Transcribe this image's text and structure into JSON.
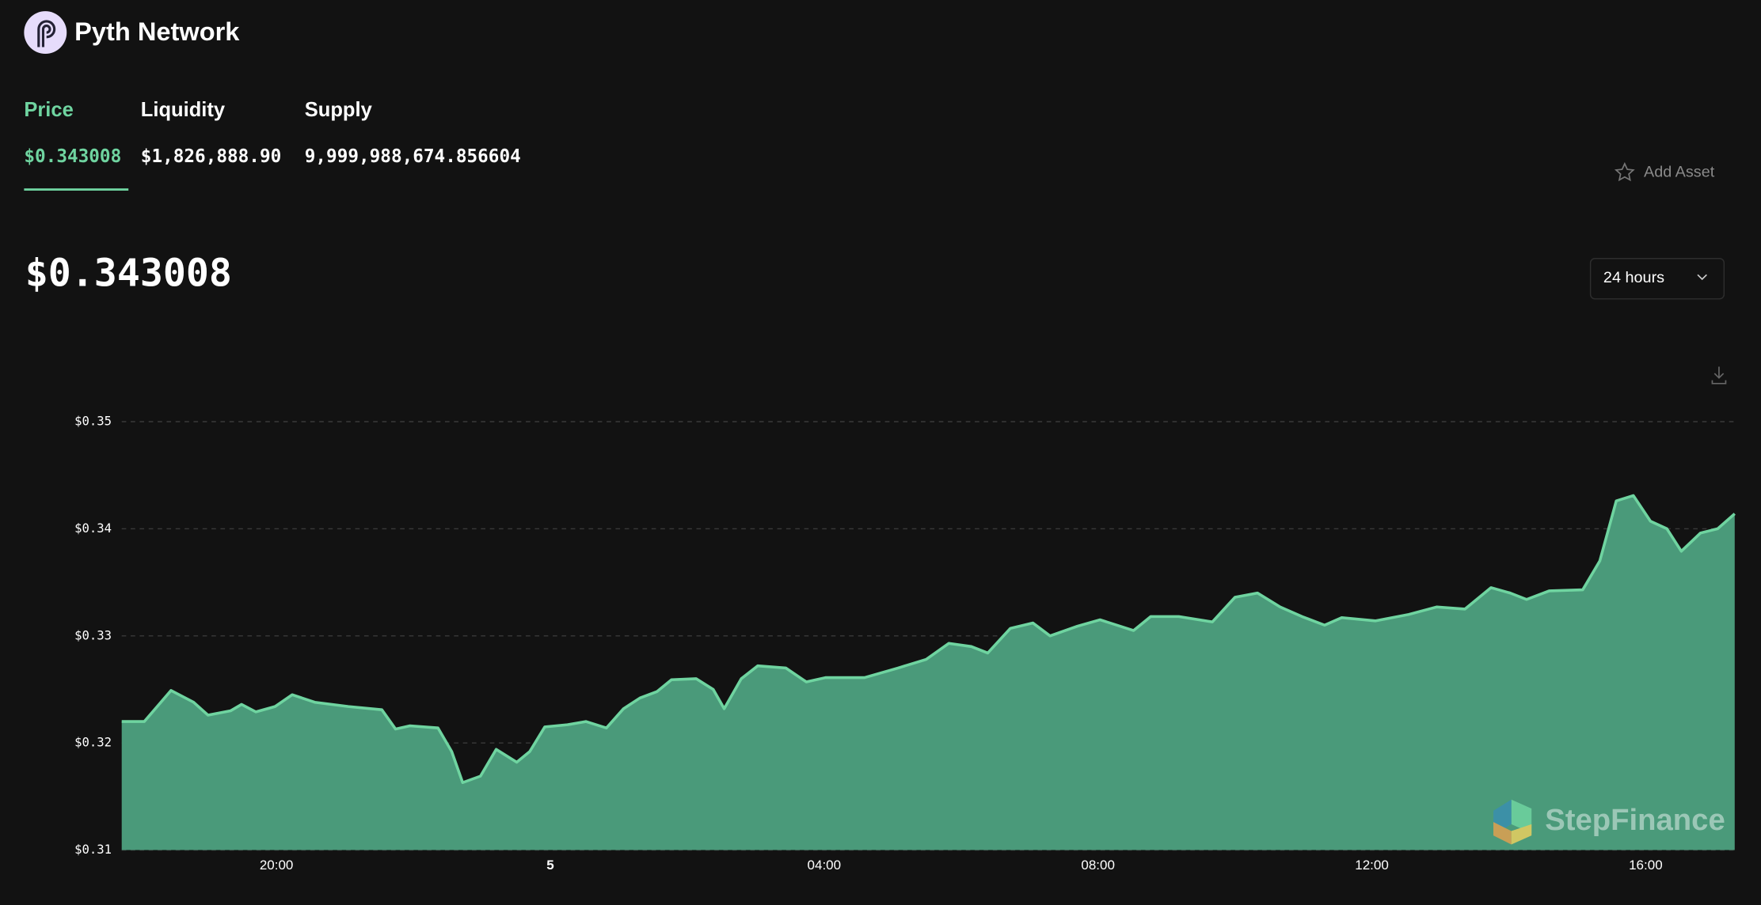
{
  "header": {
    "title": "Pyth Network"
  },
  "tabs": [
    {
      "label": "Price",
      "value": "$0.343008"
    },
    {
      "label": "Liquidity",
      "value": "$1,826,888.90"
    },
    {
      "label": "Supply",
      "value": "9,999,988,674.856604"
    }
  ],
  "add_asset": "Add Asset",
  "price": "$0.343008",
  "range": "24 hours",
  "watermark": "StepFinance",
  "chart_data": {
    "type": "area",
    "color": "#4a9a7a",
    "line_color": "#6fd4a0",
    "grid": true,
    "xlim": [
      17.74,
      41.3
    ],
    "ylim": [
      0.31,
      0.35
    ],
    "yticks": [
      {
        "value": 0.31,
        "label": "$0.31"
      },
      {
        "value": 0.32,
        "label": "$0.32"
      },
      {
        "value": 0.33,
        "label": "$0.33"
      },
      {
        "value": 0.34,
        "label": "$0.34"
      },
      {
        "value": 0.35,
        "label": "$0.35"
      }
    ],
    "xticks": [
      {
        "value": 20,
        "label": "20:00"
      },
      {
        "value": 24,
        "label": "5"
      },
      {
        "value": 28,
        "label": "04:00"
      },
      {
        "value": 32,
        "label": "08:00"
      },
      {
        "value": 36,
        "label": "12:00"
      },
      {
        "value": 40,
        "label": "16:00"
      }
    ],
    "x": [
      17.74,
      18.07,
      18.46,
      18.79,
      19.0,
      19.33,
      19.49,
      19.7,
      19.98,
      20.23,
      20.56,
      21.05,
      21.54,
      21.74,
      21.95,
      22.36,
      22.56,
      22.72,
      22.98,
      23.21,
      23.51,
      23.7,
      23.92,
      24.25,
      24.52,
      24.82,
      25.07,
      25.31,
      25.56,
      25.77,
      26.13,
      26.38,
      26.54,
      26.79,
      27.03,
      27.44,
      27.74,
      28.02,
      28.59,
      29.08,
      29.49,
      29.82,
      30.15,
      30.39,
      30.72,
      31.05,
      31.3,
      31.7,
      32.03,
      32.52,
      32.77,
      33.18,
      33.67,
      34.0,
      34.33,
      34.66,
      34.98,
      35.31,
      35.56,
      36.05,
      36.54,
      36.95,
      37.36,
      37.74,
      38.02,
      38.26,
      38.59,
      39.08,
      39.33,
      39.57,
      39.82,
      40.07,
      40.31,
      40.52,
      40.8,
      41.05,
      41.3
    ],
    "values": [
      0.322,
      0.322,
      0.3249,
      0.3238,
      0.3226,
      0.323,
      0.3236,
      0.3229,
      0.3234,
      0.3245,
      0.3238,
      0.3234,
      0.3231,
      0.3213,
      0.3216,
      0.3214,
      0.3192,
      0.3163,
      0.3169,
      0.3194,
      0.3182,
      0.3192,
      0.3215,
      0.3217,
      0.322,
      0.3214,
      0.3232,
      0.3242,
      0.3248,
      0.3259,
      0.326,
      0.325,
      0.3232,
      0.326,
      0.3272,
      0.327,
      0.3257,
      0.3261,
      0.3261,
      0.327,
      0.3278,
      0.3293,
      0.329,
      0.3284,
      0.3307,
      0.3312,
      0.33,
      0.3309,
      0.3315,
      0.3305,
      0.3318,
      0.3318,
      0.3313,
      0.3336,
      0.334,
      0.3327,
      0.3318,
      0.331,
      0.3317,
      0.3314,
      0.332,
      0.3327,
      0.3325,
      0.3345,
      0.334,
      0.3334,
      0.3342,
      0.3343,
      0.337,
      0.3426,
      0.3431,
      0.3407,
      0.34,
      0.3379,
      0.3396,
      0.34,
      0.3414
    ]
  }
}
